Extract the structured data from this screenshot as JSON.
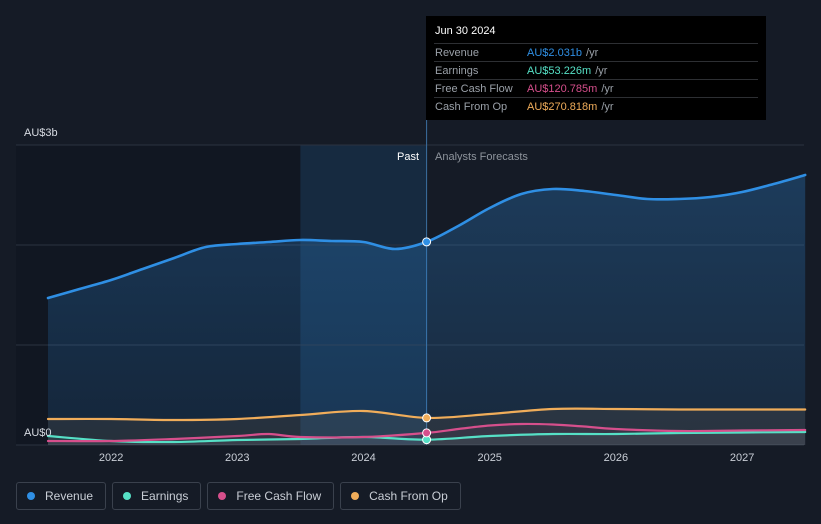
{
  "chart_data": {
    "type": "line",
    "currency_unit": "AU$",
    "y_axis": {
      "top_label": "AU$3b",
      "bottom_label": "AU$0",
      "ylim": [
        0,
        3000
      ]
    },
    "x_ticks": [
      "2022",
      "2023",
      "2024",
      "2025",
      "2026",
      "2027"
    ],
    "region_labels": {
      "past": "Past",
      "forecast": "Analysts Forecasts"
    },
    "divider_date": 2024.5,
    "highlight_band": [
      2023.5,
      2024.5
    ],
    "xlim": [
      2021.5,
      2027.5
    ],
    "colors": {
      "Revenue": "#2f8fe4",
      "Earnings": "#56e0c6",
      "Free Cash Flow": "#d64f8c",
      "Cash From Op": "#f0ad5a"
    },
    "series": [
      {
        "name": "Revenue",
        "x": [
          2021.5,
          2021.75,
          2022.0,
          2022.25,
          2022.5,
          2022.75,
          2023.0,
          2023.25,
          2023.5,
          2023.75,
          2024.0,
          2024.25,
          2024.5,
          2024.75,
          2025.0,
          2025.25,
          2025.5,
          2025.75,
          2026.0,
          2026.25,
          2026.5,
          2026.75,
          2027.0,
          2027.25,
          2027.5
        ],
        "y": [
          1470,
          1560,
          1650,
          1760,
          1870,
          1980,
          2010,
          2030,
          2050,
          2040,
          2030,
          1960,
          2031,
          2190,
          2370,
          2510,
          2560,
          2540,
          2500,
          2460,
          2460,
          2480,
          2530,
          2610,
          2700
        ]
      },
      {
        "name": "Earnings",
        "x": [
          2021.5,
          2022.0,
          2022.5,
          2023.0,
          2023.5,
          2024.0,
          2024.5,
          2025.0,
          2025.5,
          2026.0,
          2026.5,
          2027.0,
          2027.5
        ],
        "y": [
          90,
          40,
          30,
          50,
          60,
          80,
          53.226,
          90,
          110,
          110,
          120,
          125,
          130
        ]
      },
      {
        "name": "Free Cash Flow",
        "x": [
          2021.5,
          2022.0,
          2022.5,
          2023.0,
          2023.25,
          2023.5,
          2024.0,
          2024.5,
          2024.75,
          2025.0,
          2025.25,
          2025.5,
          2025.75,
          2026.0,
          2026.5,
          2027.0,
          2027.5
        ],
        "y": [
          40,
          40,
          60,
          90,
          110,
          80,
          80,
          120.785,
          160,
          195,
          210,
          205,
          185,
          160,
          140,
          145,
          150
        ]
      },
      {
        "name": "Cash From Op",
        "x": [
          2021.5,
          2022.0,
          2022.5,
          2023.0,
          2023.5,
          2024.0,
          2024.5,
          2025.0,
          2025.5,
          2026.0,
          2026.5,
          2027.0,
          2027.5
        ],
        "y": [
          260,
          260,
          250,
          260,
          300,
          340,
          270.818,
          310,
          360,
          360,
          355,
          355,
          355
        ]
      }
    ]
  },
  "tooltip": {
    "date": "Jun 30 2024",
    "rows": [
      {
        "label": "Revenue",
        "value": "AU$2.031b",
        "unit": "/yr",
        "color": "#2f8fe4"
      },
      {
        "label": "Earnings",
        "value": "AU$53.226m",
        "unit": "/yr",
        "color": "#56e0c6"
      },
      {
        "label": "Free Cash Flow",
        "value": "AU$120.785m",
        "unit": "/yr",
        "color": "#d64f8c"
      },
      {
        "label": "Cash From Op",
        "value": "AU$270.818m",
        "unit": "/yr",
        "color": "#f0ad5a"
      }
    ]
  },
  "legend": [
    {
      "label": "Revenue",
      "color": "#2f8fe4"
    },
    {
      "label": "Earnings",
      "color": "#56e0c6"
    },
    {
      "label": "Free Cash Flow",
      "color": "#d64f8c"
    },
    {
      "label": "Cash From Op",
      "color": "#f0ad5a"
    }
  ]
}
